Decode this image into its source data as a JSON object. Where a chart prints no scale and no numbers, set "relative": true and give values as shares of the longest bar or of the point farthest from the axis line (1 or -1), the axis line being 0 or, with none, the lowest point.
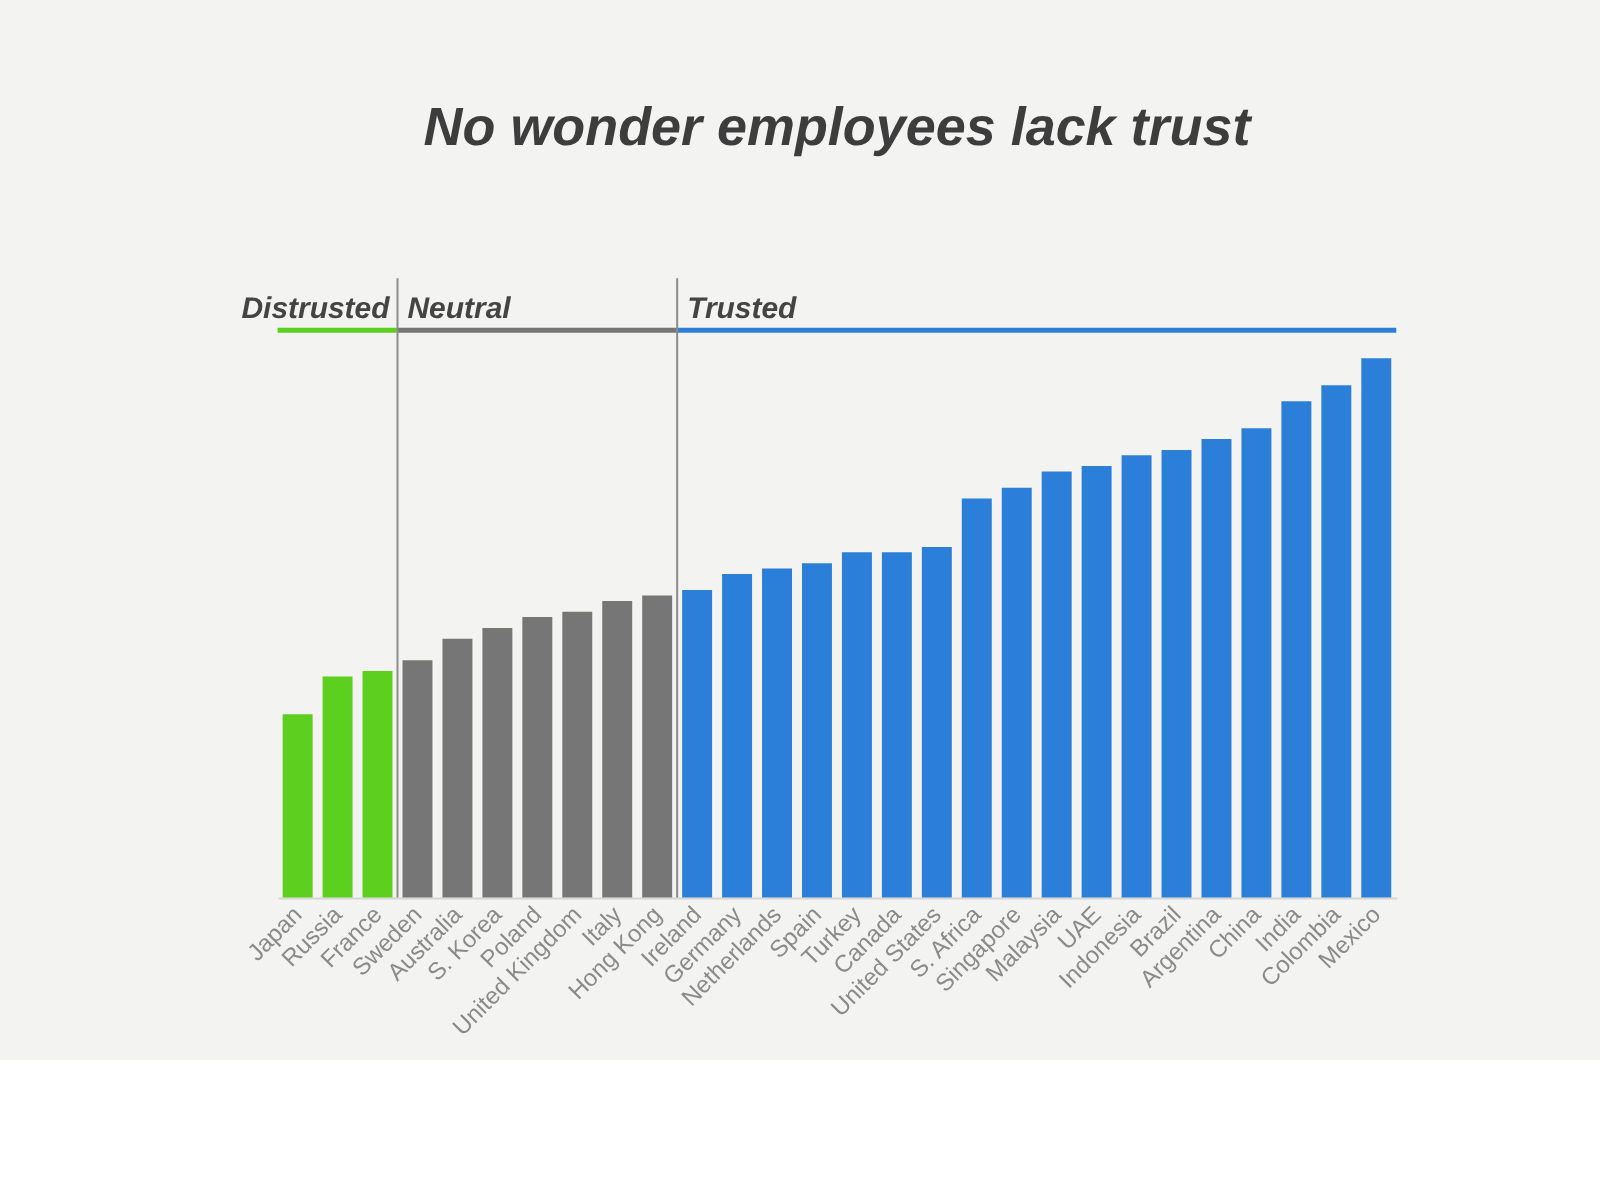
{
  "chart_data": {
    "type": "bar",
    "title": "No wonder employees lack trust",
    "categories": [
      "Japan",
      "Russia",
      "France",
      "Sweden",
      "Australia",
      "S. Korea",
      "Poland",
      "United Kingdom",
      "Italy",
      "Hong Kong",
      "Ireland",
      "Germany",
      "Netherlands",
      "Spain",
      "Turkey",
      "Canada",
      "United States",
      "S. Africa",
      "Singapore",
      "Malaysia",
      "UAE",
      "Indonesia",
      "Brazil",
      "Argentina",
      "China",
      "India",
      "Colombia",
      "Mexico"
    ],
    "values": [
      0.34,
      0.41,
      0.42,
      0.44,
      0.48,
      0.5,
      0.52,
      0.53,
      0.55,
      0.56,
      0.57,
      0.6,
      0.61,
      0.62,
      0.64,
      0.64,
      0.65,
      0.74,
      0.76,
      0.79,
      0.8,
      0.82,
      0.83,
      0.85,
      0.87,
      0.92,
      0.95,
      1
    ],
    "colors": [
      "#5ccf1f",
      "#5ccf1f",
      "#5ccf1f",
      "#767676",
      "#767676",
      "#767676",
      "#767676",
      "#767676",
      "#767676",
      "#767676",
      "#2b7fd9",
      "#2b7fd9",
      "#2b7fd9",
      "#2b7fd9",
      "#2b7fd9",
      "#2b7fd9",
      "#2b7fd9",
      "#2b7fd9",
      "#2b7fd9",
      "#2b7fd9",
      "#2b7fd9",
      "#2b7fd9",
      "#2b7fd9",
      "#2b7fd9",
      "#2b7fd9",
      "#2b7fd9",
      "#2b7fd9",
      "#2b7fd9"
    ],
    "relative": true,
    "annotations": [
      "Distrusted",
      "Neutral",
      "Trusted"
    ]
  }
}
